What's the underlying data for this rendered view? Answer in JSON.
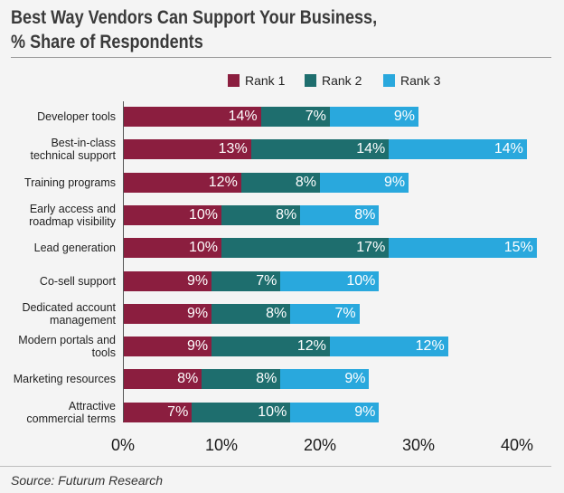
{
  "title_line1": "Best Way Vendors Can Support Your Business,",
  "title_line2": "% Share of Respondents",
  "source": "Source: Futurum Research",
  "chart_data": {
    "type": "bar",
    "orientation": "horizontal",
    "stacked": true,
    "categories": [
      "Developer tools",
      "Best-in-class technical support",
      "Training programs",
      "Early access and roadmap visibility",
      "Lead generation",
      "Co-sell support",
      "Dedicated account management",
      "Modern portals and tools",
      "Marketing resources",
      "Attractive commercial terms"
    ],
    "category_lines": [
      [
        "Developer tools"
      ],
      [
        "Best-in-class",
        "technical support"
      ],
      [
        "Training programs"
      ],
      [
        "Early access and",
        "roadmap visibility"
      ],
      [
        "Lead generation"
      ],
      [
        "Co-sell support"
      ],
      [
        "Dedicated account",
        "management"
      ],
      [
        "Modern portals and",
        "tools"
      ],
      [
        "Marketing resources"
      ],
      [
        "Attractive",
        "commercial terms"
      ]
    ],
    "series": [
      {
        "name": "Rank 1",
        "color": "#8b1e3f",
        "values": [
          14,
          13,
          12,
          10,
          10,
          9,
          9,
          9,
          8,
          7
        ]
      },
      {
        "name": "Rank 2",
        "color": "#1e6e6e",
        "values": [
          7,
          14,
          8,
          8,
          17,
          7,
          8,
          12,
          8,
          10
        ]
      },
      {
        "name": "Rank 3",
        "color": "#29a8dd",
        "values": [
          9,
          14,
          9,
          8,
          15,
          10,
          7,
          12,
          9,
          9
        ]
      }
    ],
    "value_suffix": "%",
    "xlim": [
      0,
      40
    ],
    "xticks": [
      "0%",
      "10%",
      "20%",
      "30%",
      "40%"
    ],
    "legend_position": "top",
    "grid": false
  }
}
